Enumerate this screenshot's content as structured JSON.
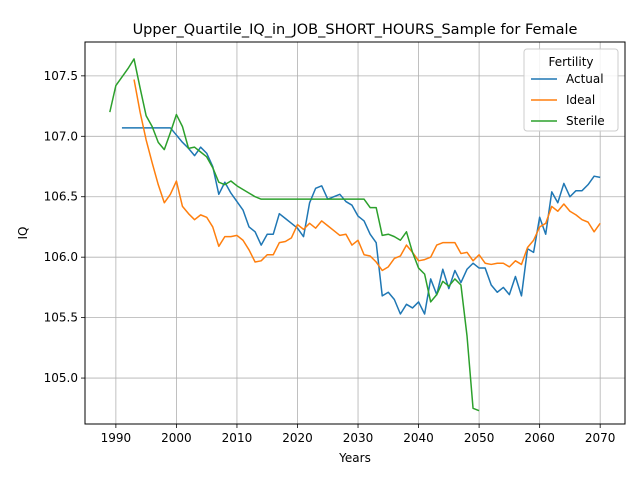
{
  "chart_data": {
    "type": "line",
    "title": "Upper_Quartile_IQ_in_JOB_SHORT_HOURS_Sample for Female",
    "xlabel": "Years",
    "ylabel": "IQ",
    "xlim": [
      1984.9,
      2074.1
    ],
    "ylim": [
      104.62,
      107.78
    ],
    "x_ticks": [
      1990,
      2000,
      2010,
      2020,
      2030,
      2040,
      2050,
      2060,
      2070
    ],
    "y_ticks": [
      105.0,
      105.5,
      106.0,
      106.5,
      107.0,
      107.5
    ],
    "grid": true,
    "legend": {
      "title": "Fertility",
      "placement": "top-right"
    },
    "series": [
      {
        "name": "Actual",
        "color": "#1f77b4",
        "points": [
          [
            1991,
            107.07
          ],
          [
            1992,
            107.07
          ],
          [
            1993,
            107.07
          ],
          [
            1994,
            107.07
          ],
          [
            1995,
            107.07
          ],
          [
            1996,
            107.07
          ],
          [
            1997,
            107.07
          ],
          [
            1998,
            107.07
          ],
          [
            1999,
            107.07
          ],
          [
            2000,
            107.01
          ],
          [
            2001,
            106.95
          ],
          [
            2002,
            106.9
          ],
          [
            2003,
            106.84
          ],
          [
            2004,
            106.91
          ],
          [
            2005,
            106.86
          ],
          [
            2006,
            106.75
          ],
          [
            2007,
            106.52
          ],
          [
            2008,
            106.62
          ],
          [
            2009,
            106.53
          ],
          [
            2010,
            106.46
          ],
          [
            2011,
            106.39
          ],
          [
            2012,
            106.25
          ],
          [
            2013,
            106.21
          ],
          [
            2014,
            106.1
          ],
          [
            2015,
            106.19
          ],
          [
            2016,
            106.19
          ],
          [
            2017,
            106.36
          ],
          [
            2018,
            106.32
          ],
          [
            2019,
            106.28
          ],
          [
            2020,
            106.24
          ],
          [
            2021,
            106.17
          ],
          [
            2022,
            106.45
          ],
          [
            2023,
            106.57
          ],
          [
            2024,
            106.59
          ],
          [
            2025,
            106.48
          ],
          [
            2026,
            106.5
          ],
          [
            2027,
            106.52
          ],
          [
            2028,
            106.46
          ],
          [
            2029,
            106.43
          ],
          [
            2030,
            106.34
          ],
          [
            2031,
            106.3
          ],
          [
            2032,
            106.19
          ],
          [
            2033,
            106.12
          ],
          [
            2034,
            105.68
          ],
          [
            2035,
            105.71
          ],
          [
            2036,
            105.65
          ],
          [
            2037,
            105.53
          ],
          [
            2038,
            105.61
          ],
          [
            2039,
            105.58
          ],
          [
            2040,
            105.63
          ],
          [
            2041,
            105.53
          ],
          [
            2042,
            105.82
          ],
          [
            2043,
            105.69
          ],
          [
            2044,
            105.9
          ],
          [
            2045,
            105.74
          ],
          [
            2046,
            105.89
          ],
          [
            2047,
            105.79
          ],
          [
            2048,
            105.9
          ],
          [
            2049,
            105.95
          ],
          [
            2050,
            105.91
          ],
          [
            2051,
            105.91
          ],
          [
            2052,
            105.77
          ],
          [
            2053,
            105.71
          ],
          [
            2054,
            105.75
          ],
          [
            2055,
            105.69
          ],
          [
            2056,
            105.84
          ],
          [
            2057,
            105.68
          ],
          [
            2058,
            106.07
          ],
          [
            2059,
            106.04
          ],
          [
            2060,
            106.33
          ],
          [
            2061,
            106.19
          ],
          [
            2062,
            106.54
          ],
          [
            2063,
            106.45
          ],
          [
            2064,
            106.61
          ],
          [
            2065,
            106.5
          ],
          [
            2066,
            106.55
          ],
          [
            2067,
            106.55
          ],
          [
            2068,
            106.6
          ],
          [
            2069,
            106.67
          ],
          [
            2070,
            106.66
          ]
        ]
      },
      {
        "name": "Ideal",
        "color": "#ff7f0e",
        "points": [
          [
            1993,
            107.47
          ],
          [
            1994,
            107.2
          ],
          [
            1995,
            106.97
          ],
          [
            1996,
            106.78
          ],
          [
            1997,
            106.6
          ],
          [
            1998,
            106.45
          ],
          [
            1999,
            106.52
          ],
          [
            2000,
            106.63
          ],
          [
            2001,
            106.42
          ],
          [
            2002,
            106.36
          ],
          [
            2003,
            106.31
          ],
          [
            2004,
            106.35
          ],
          [
            2005,
            106.33
          ],
          [
            2006,
            106.25
          ],
          [
            2007,
            106.09
          ],
          [
            2008,
            106.17
          ],
          [
            2009,
            106.17
          ],
          [
            2010,
            106.18
          ],
          [
            2011,
            106.14
          ],
          [
            2012,
            106.06
          ],
          [
            2013,
            105.96
          ],
          [
            2014,
            105.97
          ],
          [
            2015,
            106.02
          ],
          [
            2016,
            106.02
          ],
          [
            2017,
            106.12
          ],
          [
            2018,
            106.13
          ],
          [
            2019,
            106.16
          ],
          [
            2020,
            106.27
          ],
          [
            2021,
            106.23
          ],
          [
            2022,
            106.28
          ],
          [
            2023,
            106.24
          ],
          [
            2024,
            106.3
          ],
          [
            2025,
            106.26
          ],
          [
            2026,
            106.22
          ],
          [
            2027,
            106.18
          ],
          [
            2028,
            106.19
          ],
          [
            2029,
            106.1
          ],
          [
            2030,
            106.14
          ],
          [
            2031,
            106.02
          ],
          [
            2032,
            106.01
          ],
          [
            2033,
            105.96
          ],
          [
            2034,
            105.89
          ],
          [
            2035,
            105.92
          ],
          [
            2036,
            105.99
          ],
          [
            2037,
            106.01
          ],
          [
            2038,
            106.1
          ],
          [
            2039,
            106.04
          ],
          [
            2040,
            105.97
          ],
          [
            2041,
            105.98
          ],
          [
            2042,
            106.0
          ],
          [
            2043,
            106.1
          ],
          [
            2044,
            106.12
          ],
          [
            2045,
            106.12
          ],
          [
            2046,
            106.12
          ],
          [
            2047,
            106.03
          ],
          [
            2048,
            106.04
          ],
          [
            2049,
            105.97
          ],
          [
            2050,
            106.02
          ],
          [
            2051,
            105.95
          ],
          [
            2052,
            105.94
          ],
          [
            2053,
            105.95
          ],
          [
            2054,
            105.95
          ],
          [
            2055,
            105.92
          ],
          [
            2056,
            105.97
          ],
          [
            2057,
            105.94
          ],
          [
            2058,
            106.08
          ],
          [
            2059,
            106.14
          ],
          [
            2060,
            106.25
          ],
          [
            2061,
            106.28
          ],
          [
            2062,
            106.42
          ],
          [
            2063,
            106.38
          ],
          [
            2064,
            106.44
          ],
          [
            2065,
            106.38
          ],
          [
            2066,
            106.35
          ],
          [
            2067,
            106.31
          ],
          [
            2068,
            106.29
          ],
          [
            2069,
            106.21
          ],
          [
            2070,
            106.28
          ]
        ]
      },
      {
        "name": "Sterile",
        "color": "#2ca02c",
        "points": [
          [
            1989,
            107.2
          ],
          [
            1990,
            107.42
          ],
          [
            1991,
            107.49
          ],
          [
            1992,
            107.56
          ],
          [
            1993,
            107.64
          ],
          [
            1994,
            107.4
          ],
          [
            1995,
            107.17
          ],
          [
            1996,
            107.08
          ],
          [
            1997,
            106.95
          ],
          [
            1998,
            106.89
          ],
          [
            1999,
            107.03
          ],
          [
            2000,
            107.18
          ],
          [
            2001,
            107.08
          ],
          [
            2002,
            106.9
          ],
          [
            2003,
            106.91
          ],
          [
            2004,
            106.87
          ],
          [
            2005,
            106.83
          ],
          [
            2006,
            106.74
          ],
          [
            2007,
            106.62
          ],
          [
            2008,
            106.6
          ],
          [
            2009,
            106.63
          ],
          [
            2010,
            106.59
          ],
          [
            2011,
            106.56
          ],
          [
            2012,
            106.53
          ],
          [
            2013,
            106.5
          ],
          [
            2014,
            106.48
          ],
          [
            2015,
            106.48
          ],
          [
            2016,
            106.48
          ],
          [
            2017,
            106.48
          ],
          [
            2018,
            106.48
          ],
          [
            2019,
            106.48
          ],
          [
            2020,
            106.48
          ],
          [
            2021,
            106.48
          ],
          [
            2022,
            106.48
          ],
          [
            2023,
            106.48
          ],
          [
            2024,
            106.48
          ],
          [
            2025,
            106.48
          ],
          [
            2026,
            106.48
          ],
          [
            2027,
            106.48
          ],
          [
            2028,
            106.48
          ],
          [
            2029,
            106.48
          ],
          [
            2030,
            106.48
          ],
          [
            2031,
            106.48
          ],
          [
            2032,
            106.41
          ],
          [
            2033,
            106.41
          ],
          [
            2034,
            106.18
          ],
          [
            2035,
            106.19
          ],
          [
            2036,
            106.17
          ],
          [
            2037,
            106.14
          ],
          [
            2038,
            106.21
          ],
          [
            2039,
            106.04
          ],
          [
            2040,
            105.91
          ],
          [
            2041,
            105.86
          ],
          [
            2042,
            105.63
          ],
          [
            2043,
            105.69
          ],
          [
            2044,
            105.8
          ],
          [
            2045,
            105.76
          ],
          [
            2046,
            105.82
          ],
          [
            2047,
            105.77
          ],
          [
            2048,
            105.35
          ],
          [
            2049,
            104.75
          ],
          [
            2050,
            104.73
          ]
        ]
      }
    ]
  }
}
